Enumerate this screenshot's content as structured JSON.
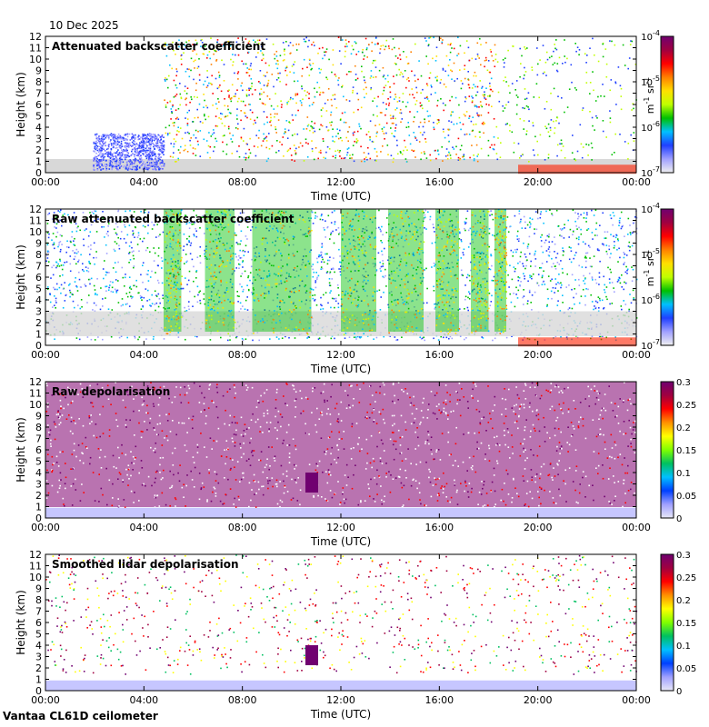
{
  "header": {
    "date": "10 Dec 2025"
  },
  "footer": {
    "site": "Vantaa CL61D ceilometer"
  },
  "chart_data": [
    {
      "type": "heatmap",
      "title": "Attenuated backscatter coefficient",
      "xlabel": "Time (UTC)",
      "ylabel": "Height (km)",
      "xticks": [
        "00:00",
        "04:00",
        "08:00",
        "12:00",
        "16:00",
        "20:00",
        "00:00"
      ],
      "yticks": [
        "0",
        "1",
        "2",
        "3",
        "4",
        "5",
        "6",
        "7",
        "8",
        "9",
        "10",
        "11",
        "12"
      ],
      "ylim": [
        0,
        12
      ],
      "colorbar": {
        "scale": "log",
        "ticks": [
          "10",
          "10",
          "10",
          "10"
        ],
        "exponents": [
          "-7",
          "-6",
          "-5",
          "-4"
        ],
        "unit": "m",
        "unit_exp": "-1",
        "unit2": "sr",
        "unit2_exp": "-1"
      }
    },
    {
      "type": "heatmap",
      "title": "Raw attenuated backscatter coefficient",
      "xlabel": "Time (UTC)",
      "ylabel": "Height (km)",
      "xticks": [
        "00:00",
        "04:00",
        "08:00",
        "12:00",
        "16:00",
        "20:00",
        "00:00"
      ],
      "yticks": [
        "0",
        "1",
        "2",
        "3",
        "4",
        "5",
        "6",
        "7",
        "8",
        "9",
        "10",
        "11",
        "12"
      ],
      "ylim": [
        0,
        12
      ],
      "colorbar": {
        "scale": "log",
        "ticks": [
          "10",
          "10",
          "10",
          "10"
        ],
        "exponents": [
          "-7",
          "-6",
          "-5",
          "-4"
        ],
        "unit": "m",
        "unit_exp": "-1",
        "unit2": "sr",
        "unit2_exp": "-1"
      }
    },
    {
      "type": "heatmap",
      "title": "Raw depolarisation",
      "xlabel": "Time (UTC)",
      "ylabel": "Height (km)",
      "xticks": [
        "00:00",
        "04:00",
        "08:00",
        "12:00",
        "16:00",
        "20:00",
        "00:00"
      ],
      "yticks": [
        "0",
        "1",
        "2",
        "3",
        "4",
        "5",
        "6",
        "7",
        "8",
        "9",
        "10",
        "11",
        "12"
      ],
      "ylim": [
        0,
        12
      ],
      "colorbar": {
        "scale": "linear",
        "ticks": [
          "0",
          "0.05",
          "0.1",
          "0.15",
          "0.2",
          "0.25",
          "0.3"
        ],
        "range": [
          0,
          0.3
        ]
      }
    },
    {
      "type": "heatmap",
      "title": "Smoothed lidar depolarisation",
      "xlabel": "Time (UTC)",
      "ylabel": "Height (km)",
      "xticks": [
        "00:00",
        "04:00",
        "08:00",
        "12:00",
        "16:00",
        "20:00",
        "00:00"
      ],
      "yticks": [
        "0",
        "1",
        "2",
        "3",
        "4",
        "5",
        "6",
        "7",
        "8",
        "9",
        "10",
        "11",
        "12"
      ],
      "ylim": [
        0,
        12
      ],
      "colorbar": {
        "scale": "linear",
        "ticks": [
          "0",
          "0.05",
          "0.1",
          "0.15",
          "0.2",
          "0.25",
          "0.3"
        ],
        "range": [
          0,
          0.3
        ]
      }
    }
  ]
}
